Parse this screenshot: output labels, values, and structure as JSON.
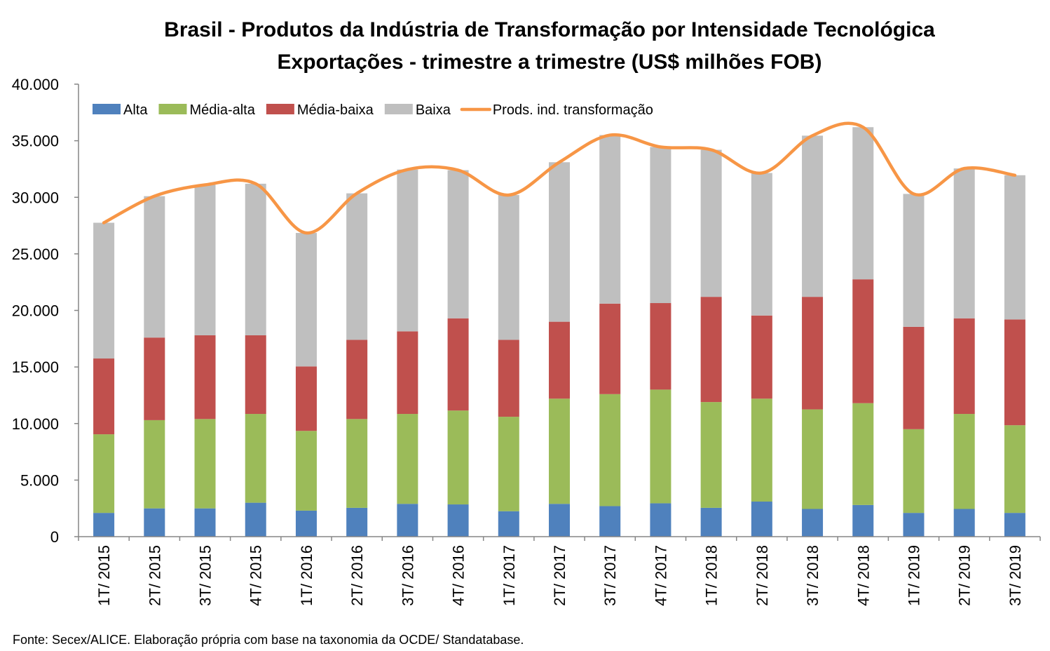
{
  "chart_data": {
    "type": "bar",
    "stacked": true,
    "title": "Brasil - Produtos da Indústria de Transformação por Intensidade Tecnológica",
    "subtitle": "Exportações - trimestre a trimestre (US$ milhões FOB)",
    "source": "Fonte: Secex/ALICE. Elaboração própria com base na taxonomia da OCDE/ Standatabase.",
    "ylim": [
      0,
      40000
    ],
    "yticks": [
      {
        "value": 0,
        "label": "0"
      },
      {
        "value": 5000,
        "label": "5.000"
      },
      {
        "value": 10000,
        "label": "10.000"
      },
      {
        "value": 15000,
        "label": "15.000"
      },
      {
        "value": 20000,
        "label": "20.000"
      },
      {
        "value": 25000,
        "label": "25.000"
      },
      {
        "value": 30000,
        "label": "30.000"
      },
      {
        "value": 35000,
        "label": "35.000"
      },
      {
        "value": 40000,
        "label": "40.000"
      }
    ],
    "grid": false,
    "legend_position": "top",
    "categories": [
      "1T/ 2015",
      "2T/ 2015",
      "3T/ 2015",
      "4T/ 2015",
      "1T/ 2016",
      "2T/ 2016",
      "3T/ 2016",
      "4T/ 2016",
      "1T/ 2017",
      "2T/ 2017",
      "3T/ 2017",
      "4T/ 2017",
      "1T/ 2018",
      "2T/ 2018",
      "3T/ 2018",
      "4T/ 2018",
      "1T/ 2019",
      "2T/ 2019",
      "3T/ 2019"
    ],
    "series": [
      {
        "name": "Alta",
        "color": "#4f81bd",
        "values": [
          2100,
          2500,
          2500,
          3000,
          2300,
          2550,
          2900,
          2850,
          2250,
          2900,
          2700,
          2950,
          2550,
          3100,
          2450,
          2800,
          2100,
          2450,
          2100
        ]
      },
      {
        "name": "Média-alta",
        "color": "#9bbb59",
        "values": [
          6950,
          7800,
          7900,
          7850,
          7050,
          7850,
          7950,
          8300,
          8350,
          9300,
          9900,
          10050,
          9350,
          9100,
          8800,
          9000,
          7400,
          8400,
          7750
        ]
      },
      {
        "name": "Média-baixa",
        "color": "#c0504d",
        "values": [
          6700,
          7300,
          7400,
          6950,
          5700,
          7000,
          7300,
          8150,
          6800,
          6800,
          8000,
          7650,
          9300,
          7350,
          9950,
          10950,
          9050,
          8450,
          9350
        ]
      },
      {
        "name": "Baixa",
        "color": "#bfbfbf",
        "values": [
          12000,
          12500,
          13300,
          13400,
          11800,
          12950,
          14300,
          13100,
          12800,
          14100,
          14900,
          13800,
          13000,
          12600,
          14250,
          13450,
          11750,
          13250,
          12750
        ]
      }
    ],
    "line": {
      "name": "Prods. ind. transformação",
      "color": "#f79646",
      "values": [
        27750,
        30100,
        31100,
        31200,
        26850,
        30350,
        32450,
        32400,
        30200,
        33100,
        35500,
        34450,
        34200,
        32150,
        35450,
        36200,
        30300,
        32550,
        31950
      ]
    }
  }
}
